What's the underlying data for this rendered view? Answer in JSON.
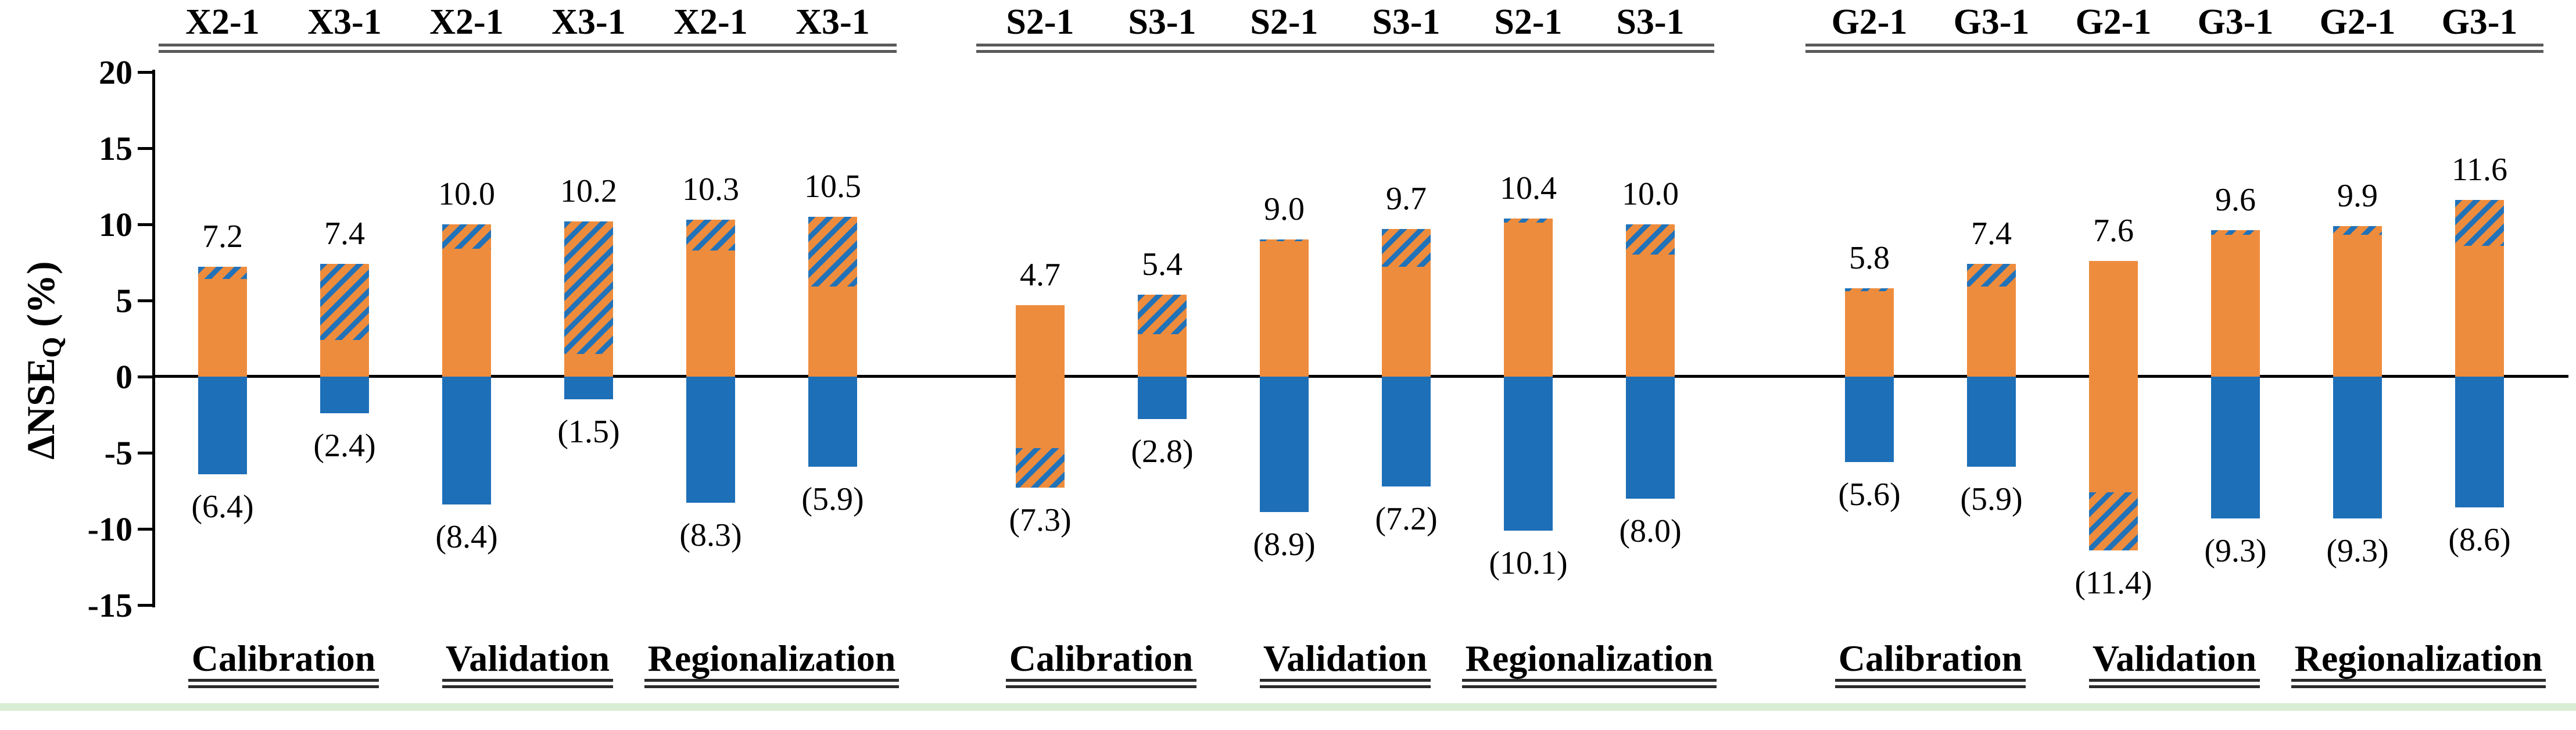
{
  "y_axis": {
    "title_main": "ΔNSE",
    "title_sub": "Q",
    "title_unit": " (%)",
    "ticks": [
      {
        "value": 20,
        "label": "20"
      },
      {
        "value": 15,
        "label": "15"
      },
      {
        "value": 10,
        "label": "10"
      },
      {
        "value": 5,
        "label": "5"
      },
      {
        "value": 0,
        "label": "0"
      },
      {
        "value": -5,
        "label": "-5"
      },
      {
        "value": -10,
        "label": "-10"
      },
      {
        "value": -15,
        "label": "-15"
      }
    ]
  },
  "colors": {
    "orange": "#ee8c3d",
    "blue": "#1d6fb8",
    "hatch_stripe_blue": "#2272b8",
    "footer_strip_green": "#d9ecd4"
  },
  "chart_data": {
    "type": "bar",
    "title": "",
    "xlabel": "",
    "ylabel": "ΔNSE_Q (%)",
    "ylim": [
      -15,
      20
    ],
    "yticks": [
      20,
      15,
      10,
      5,
      0,
      -5,
      -10,
      -15
    ],
    "grid": false,
    "legend": "none",
    "bar_semantics": "Each bar: top number = total positive ΔNSE stack; number in parentheses = magnitude of negative stack. Solid orange above zero spans 0..min(pos,neg); hatched segment spans the remainder |pos-neg| on the larger side; solid blue spans 0..-neg when pos>neg; when neg>pos the below-zero part is orange 0..-pos with hatched -pos..-neg.",
    "panels": [
      {
        "groups": [
          "Calibration",
          "Validation",
          "Regionalization"
        ],
        "bars": [
          {
            "column": "X2-1",
            "group": "Calibration",
            "positive": 7.2,
            "positive_label": "7.2",
            "negative": 6.4,
            "negative_label": "(6.4)"
          },
          {
            "column": "X3-1",
            "group": "Calibration",
            "positive": 7.4,
            "positive_label": "7.4",
            "negative": 2.4,
            "negative_label": "(2.4)"
          },
          {
            "column": "X2-1",
            "group": "Validation",
            "positive": 10.0,
            "positive_label": "10.0",
            "negative": 8.4,
            "negative_label": "(8.4)"
          },
          {
            "column": "X3-1",
            "group": "Validation",
            "positive": 10.2,
            "positive_label": "10.2",
            "negative": 1.5,
            "negative_label": "(1.5)"
          },
          {
            "column": "X2-1",
            "group": "Regionalization",
            "positive": 10.3,
            "positive_label": "10.3",
            "negative": 8.3,
            "negative_label": "(8.3)"
          },
          {
            "column": "X3-1",
            "group": "Regionalization",
            "positive": 10.5,
            "positive_label": "10.5",
            "negative": 5.9,
            "negative_label": "(5.9)"
          }
        ]
      },
      {
        "groups": [
          "Calibration",
          "Validation",
          "Regionalization"
        ],
        "bars": [
          {
            "column": "S2-1",
            "group": "Calibration",
            "positive": 4.7,
            "positive_label": "4.7",
            "negative": 7.3,
            "negative_label": "(7.3)"
          },
          {
            "column": "S3-1",
            "group": "Calibration",
            "positive": 5.4,
            "positive_label": "5.4",
            "negative": 2.8,
            "negative_label": "(2.8)"
          },
          {
            "column": "S2-1",
            "group": "Validation",
            "positive": 9.0,
            "positive_label": "9.0",
            "negative": 8.9,
            "negative_label": "(8.9)"
          },
          {
            "column": "S3-1",
            "group": "Validation",
            "positive": 9.7,
            "positive_label": "9.7",
            "negative": 7.2,
            "negative_label": "(7.2)"
          },
          {
            "column": "S2-1",
            "group": "Regionalization",
            "positive": 10.4,
            "positive_label": "10.4",
            "negative": 10.1,
            "negative_label": "(10.1)"
          },
          {
            "column": "S3-1",
            "group": "Regionalization",
            "positive": 10.0,
            "positive_label": "10.0",
            "negative": 8.0,
            "negative_label": "(8.0)"
          }
        ]
      },
      {
        "groups": [
          "Calibration",
          "Validation",
          "Regionalization"
        ],
        "bars": [
          {
            "column": "G2-1",
            "group": "Calibration",
            "positive": 5.8,
            "positive_label": "5.8",
            "negative": 5.6,
            "negative_label": "(5.6)"
          },
          {
            "column": "G3-1",
            "group": "Calibration",
            "positive": 7.4,
            "positive_label": "7.4",
            "negative": 5.9,
            "negative_label": "(5.9)"
          },
          {
            "column": "G2-1",
            "group": "Validation",
            "positive": 7.6,
            "positive_label": "7.6",
            "negative": 11.4,
            "negative_label": "(11.4)"
          },
          {
            "column": "G3-1",
            "group": "Validation",
            "positive": 9.6,
            "positive_label": "9.6",
            "negative": 9.3,
            "negative_label": "(9.3)"
          },
          {
            "column": "G2-1",
            "group": "Regionalization",
            "positive": 9.9,
            "positive_label": "9.9",
            "negative": 9.3,
            "negative_label": "(9.3)"
          },
          {
            "column": "G3-1",
            "group": "Regionalization",
            "positive": 11.6,
            "positive_label": "11.6",
            "negative": 8.6,
            "negative_label": "(8.6)"
          }
        ]
      }
    ]
  }
}
